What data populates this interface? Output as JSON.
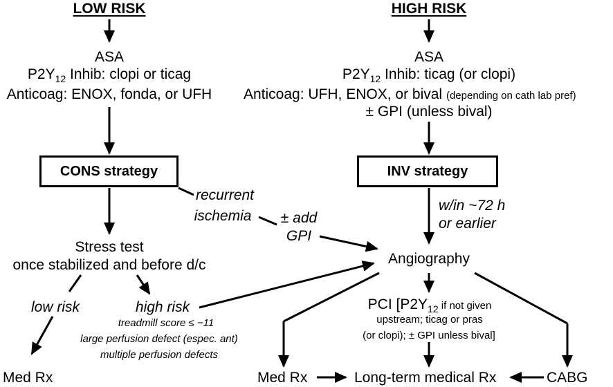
{
  "low": {
    "title": "LOW RISK",
    "asa": "ASA",
    "p2y_prefix": "P2Y",
    "p2y_sub": "12",
    "p2y_rest": " Inhib: clopi or ticag",
    "anticoag": "Anticoag: ENOX, fonda, or UFH",
    "strategy": "CONS strategy",
    "recurrent": "recurrent",
    "ischemia": "ischemia",
    "add": "± add",
    "gpi": "GPI",
    "stress_test": "Stress test",
    "stress_when": "once stabilized and before d/c",
    "low_risk": "low risk",
    "high_risk": "high risk",
    "criteria": [
      "treadmill score ≤ −11",
      "large perfusion defect (espec. ant)",
      "multiple perfusion defects"
    ],
    "med_rx": "Med Rx"
  },
  "high": {
    "title": "HIGH RISK",
    "asa": "ASA",
    "p2y_prefix": "P2Y",
    "p2y_sub": "12",
    "p2y_rest": " Inhib: ticag (or clopi)",
    "anticoag": "Anticoag: UFH, ENOX, or bival",
    "anticoag_note": "(depending on cath lab pref)",
    "gpi": "± GPI (unless bival)",
    "strategy": "INV strategy",
    "timing1": "w/in ~72 h",
    "timing2": "or earlier",
    "angiography": "Angiography",
    "pci_prefix": "PCI [P2Y",
    "pci_sub": "12",
    "pci_rest": " if not given",
    "pci_line2": "upstream; ticag or pras",
    "pci_line3": "(or clopi); ± GPI unless bival]",
    "med_rx": "Med Rx",
    "long_term": "Long-term medical Rx",
    "cabg": "CABG"
  }
}
